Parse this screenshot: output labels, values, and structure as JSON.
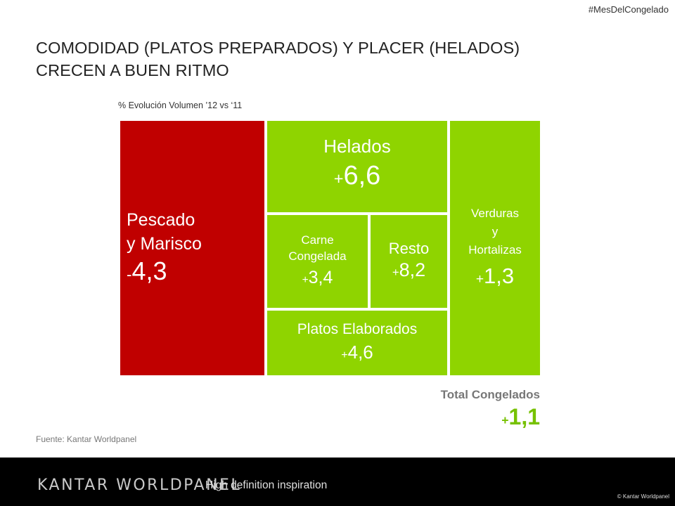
{
  "header": {
    "hashtag": "#MesDelCongelado",
    "title_line1": "COMODIDAD (PLATOS PREPARADOS) Y PLACER (HELADOS)",
    "title_line2": "CRECEN A BUEN RITMO"
  },
  "chart_data": {
    "type": "treemap",
    "subtitle": "% Evolución Volumen ’12  vs ‘11",
    "colors": {
      "negative": "#c00000",
      "positive": "#8fd400"
    },
    "cells": [
      {
        "label": "Pescado y Marisco",
        "label_lines": [
          "Pescado",
          "y Marisco"
        ],
        "value": -4.3,
        "sign": "-",
        "display": "4,3"
      },
      {
        "label": "Helados",
        "label_lines": [
          "Helados"
        ],
        "value": 6.6,
        "sign": "+",
        "display": "6,6"
      },
      {
        "label": "Carne Congelada",
        "label_lines": [
          "Carne",
          "Congelada"
        ],
        "value": 3.4,
        "sign": "+",
        "display": "3,4"
      },
      {
        "label": "Resto",
        "label_lines": [
          "Resto"
        ],
        "value": 8.2,
        "sign": "+",
        "display": "8,2"
      },
      {
        "label": "Platos Elaborados",
        "label_lines": [
          "Platos Elaborados"
        ],
        "value": 4.6,
        "sign": "+",
        "display": "4,6"
      },
      {
        "label": "Verduras y Hortalizas",
        "label_lines": [
          "Verduras",
          "y",
          "Hortalizas"
        ],
        "value": 1.3,
        "sign": "+",
        "display": "1,3"
      }
    ],
    "total": {
      "label": "Total Congelados",
      "value": 1.1,
      "sign": "+",
      "display": "1,1"
    }
  },
  "source": "Fuente: Kantar Worldpanel",
  "footer": {
    "brand": "KANTAR WORLDPANEL",
    "tagline": "High definition inspiration",
    "copyright": "© Kantar Worldpanel"
  }
}
